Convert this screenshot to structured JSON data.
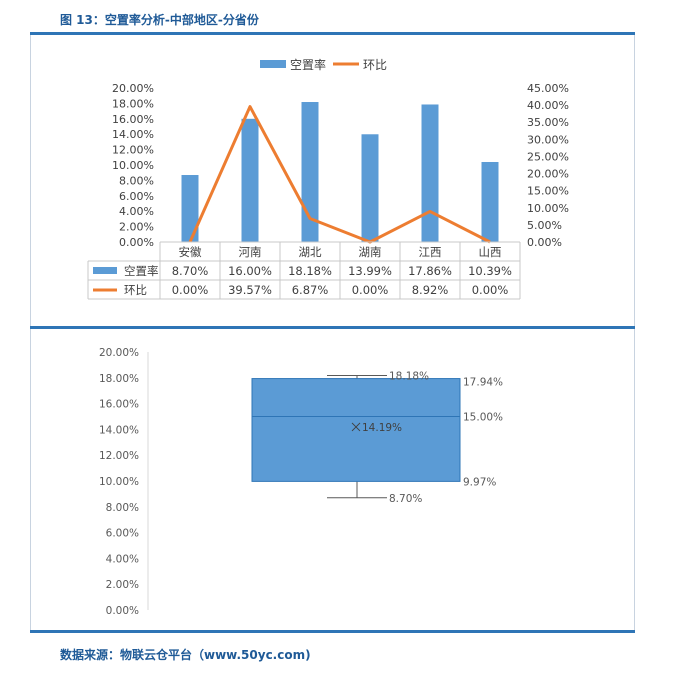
{
  "figure_title": "图 13：空置率分析-中部地区-分省份",
  "source_text": "数据来源：物联云仓平台（www.50yc.com)",
  "colors": {
    "bar": "#5b9bd5",
    "line": "#ed7d31",
    "box": "#5b9bd5",
    "box_stroke": "#2e75b6",
    "rule": "#2e75b6"
  },
  "chart_data": [
    {
      "type": "bar",
      "categories": [
        "安徽",
        "河南",
        "湖北",
        "湖南",
        "江西",
        "山西"
      ],
      "series": [
        {
          "name": "空置率",
          "type": "bar",
          "axis": "left",
          "values": [
            8.7,
            16.0,
            18.18,
            13.99,
            17.86,
            10.39
          ],
          "labels": [
            "8.70%",
            "16.00%",
            "18.18%",
            "13.99%",
            "17.86%",
            "10.39%"
          ]
        },
        {
          "name": "环比",
          "type": "line",
          "axis": "right",
          "values": [
            0.0,
            39.57,
            6.87,
            0.0,
            8.92,
            0.0
          ],
          "labels": [
            "0.00%",
            "39.57%",
            "6.87%",
            "0.00%",
            "8.92%",
            "0.00%"
          ]
        }
      ],
      "y_left": {
        "ylim": [
          0,
          20
        ],
        "ticks": [
          "0.00%",
          "2.00%",
          "4.00%",
          "6.00%",
          "8.00%",
          "10.00%",
          "12.00%",
          "14.00%",
          "16.00%",
          "18.00%",
          "20.00%"
        ]
      },
      "y_right": {
        "ylim": [
          0,
          45
        ],
        "ticks": [
          "0.00%",
          "5.00%",
          "10.00%",
          "15.00%",
          "20.00%",
          "25.00%",
          "30.00%",
          "35.00%",
          "40.00%",
          "45.00%"
        ]
      },
      "legend": "top",
      "data_table": true
    },
    {
      "type": "box",
      "ylim": [
        0,
        20
      ],
      "ticks": [
        "0.00%",
        "2.00%",
        "4.00%",
        "6.00%",
        "8.00%",
        "10.00%",
        "12.00%",
        "14.00%",
        "16.00%",
        "18.00%",
        "20.00%"
      ],
      "stats": {
        "min": 8.7,
        "q1": 9.97,
        "median": 15.0,
        "mean": 14.19,
        "q3": 17.94,
        "max": 18.18
      },
      "labels": {
        "min": "8.70%",
        "q1": "9.97%",
        "median": "15.00%",
        "mean": "14.19%",
        "q3": "17.94%",
        "max": "18.18%"
      }
    }
  ]
}
